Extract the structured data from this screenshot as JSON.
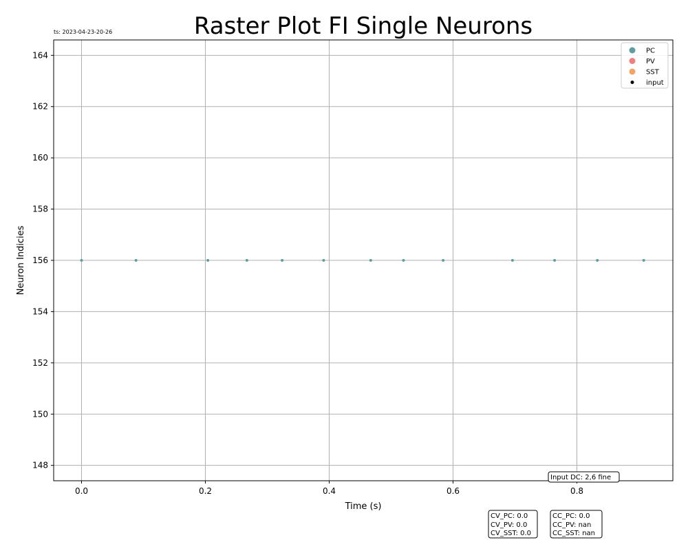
{
  "chart_data": {
    "type": "scatter",
    "title": "Raster Plot FI Single Neurons",
    "timestamp": "ts: 2023-04-23-20-26",
    "xlabel": "Time (s)",
    "ylabel": "Neuron Indicies",
    "xlim": [
      -0.045,
      0.955
    ],
    "ylim": [
      147.4,
      164.6
    ],
    "xticks": [
      0.0,
      0.2,
      0.4,
      0.6,
      0.8
    ],
    "xtick_labels": [
      "0.0",
      "0.2",
      "0.4",
      "0.6",
      "0.8"
    ],
    "yticks": [
      148,
      150,
      152,
      154,
      156,
      158,
      160,
      162,
      164
    ],
    "ytick_labels": [
      "148",
      "150",
      "152",
      "154",
      "156",
      "158",
      "160",
      "162",
      "164"
    ],
    "grid": true,
    "legend_position": "top-right",
    "series": [
      {
        "name": "PC",
        "color": "#5f9ea0",
        "x": [
          0.0,
          0.088,
          0.204,
          0.267,
          0.324,
          0.391,
          0.467,
          0.52,
          0.584,
          0.696,
          0.764,
          0.833,
          0.908
        ],
        "y": [
          156,
          156,
          156,
          156,
          156,
          156,
          156,
          156,
          156,
          156,
          156,
          156,
          156
        ]
      },
      {
        "name": "PV",
        "color": "#f08080",
        "x": [],
        "y": []
      },
      {
        "name": "SST",
        "color": "#f4a460",
        "x": [],
        "y": []
      },
      {
        "name": "input",
        "color": "#000000",
        "x": [],
        "y": []
      }
    ],
    "annotations": {
      "input_dc": "Input DC: 2,6 fine",
      "cv": [
        "CV_PC: 0.0",
        "CV_PV: 0.0",
        "CV_SST: 0.0"
      ],
      "cc": [
        "CC_PC: 0.0",
        "CC_PV: nan",
        "CC_SST: nan"
      ]
    }
  }
}
